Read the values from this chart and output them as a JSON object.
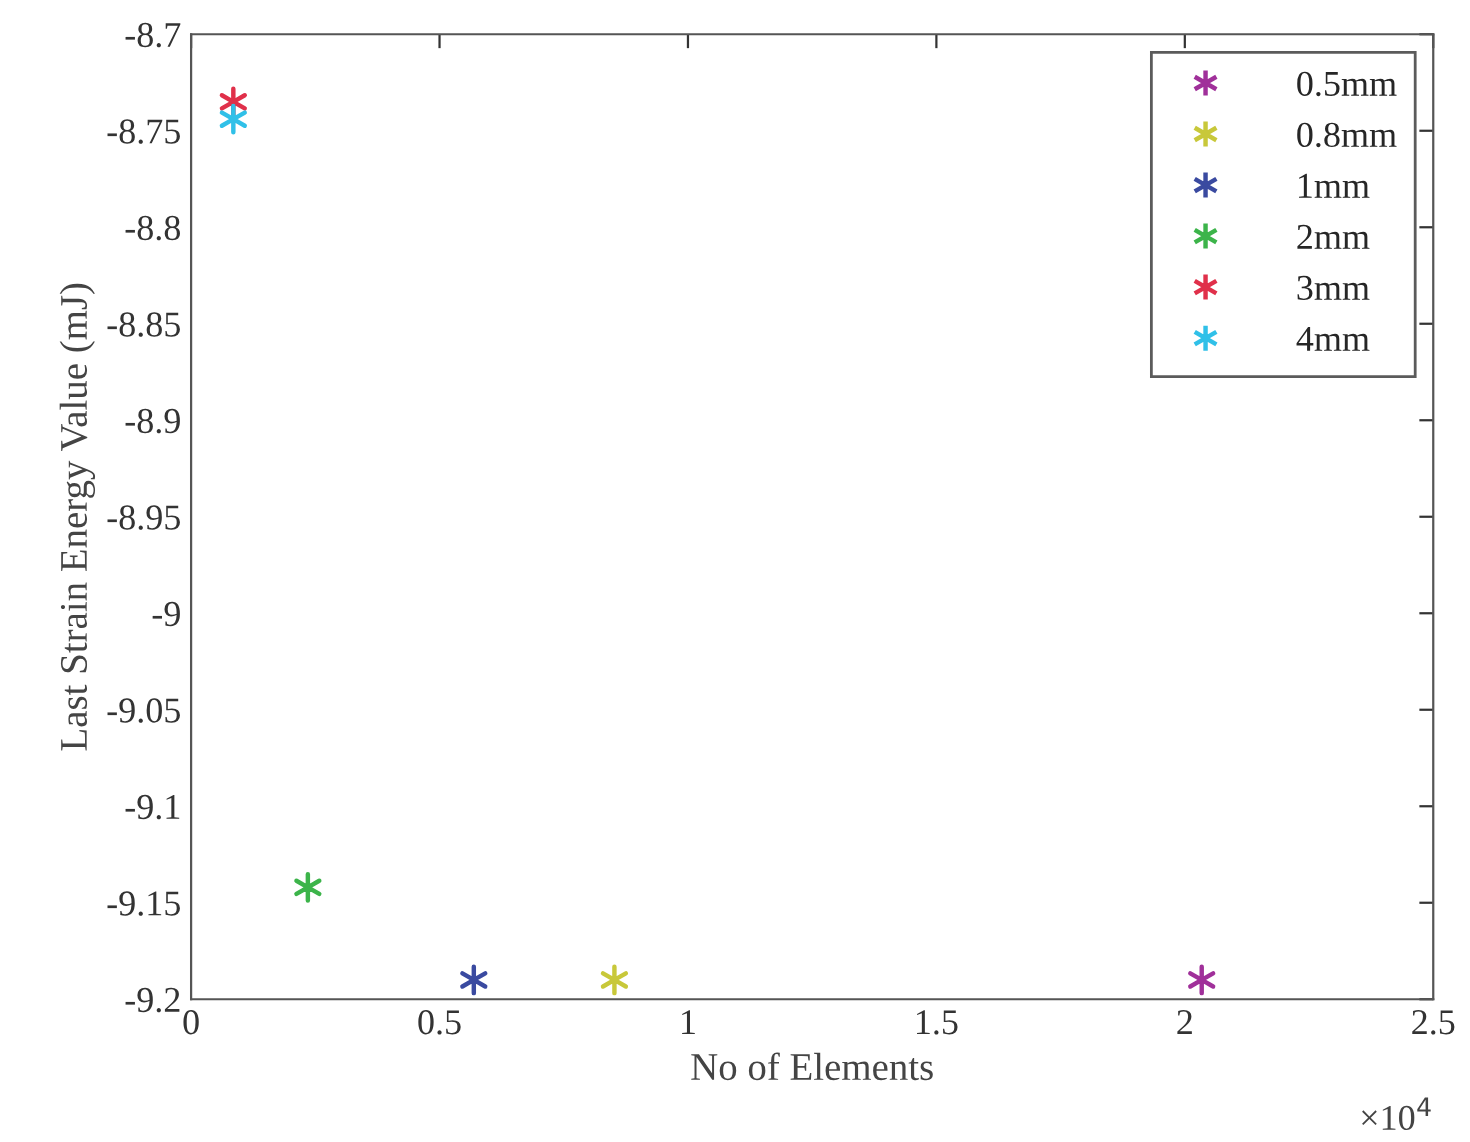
{
  "chart_data": {
    "type": "scatter",
    "xlabel": "No of Elements",
    "ylabel": "Last Strain Energy Value (mJ)",
    "series": [
      {
        "name": "0.5mm",
        "color": "#a0309a",
        "x": [
          2.034
        ],
        "values": [
          -9.19
        ]
      },
      {
        "name": "0.8mm",
        "color": "#c8c83a",
        "x": [
          0.852
        ],
        "values": [
          -9.19
        ]
      },
      {
        "name": "1mm",
        "color": "#3a4aa0",
        "x": [
          0.569
        ],
        "values": [
          -9.19
        ]
      },
      {
        "name": "2mm",
        "color": "#3cb44a",
        "x": [
          0.235
        ],
        "values": [
          -9.142
        ]
      },
      {
        "name": "3mm",
        "color": "#e0304a",
        "x": [
          0.085
        ],
        "values": [
          -8.735
        ]
      },
      {
        "name": "4mm",
        "color": "#30c0e8",
        "x": [
          0.085
        ],
        "values": [
          -8.744
        ]
      }
    ],
    "xlim": [
      0,
      2.5
    ],
    "xticks": [
      0,
      0.5,
      1,
      1.5,
      2,
      2.5
    ],
    "ylim": [
      -9.2,
      -8.7
    ],
    "yticks": [
      -9.2,
      -9.15,
      -9.1,
      -9.05,
      -9,
      -8.95,
      -8.9,
      -8.85,
      -8.8,
      -8.75,
      -8.7
    ],
    "annotations": [
      "×10$^{4}$"
    ],
    "legend": "top right",
    "marker": "cross",
    "grid": false
  }
}
